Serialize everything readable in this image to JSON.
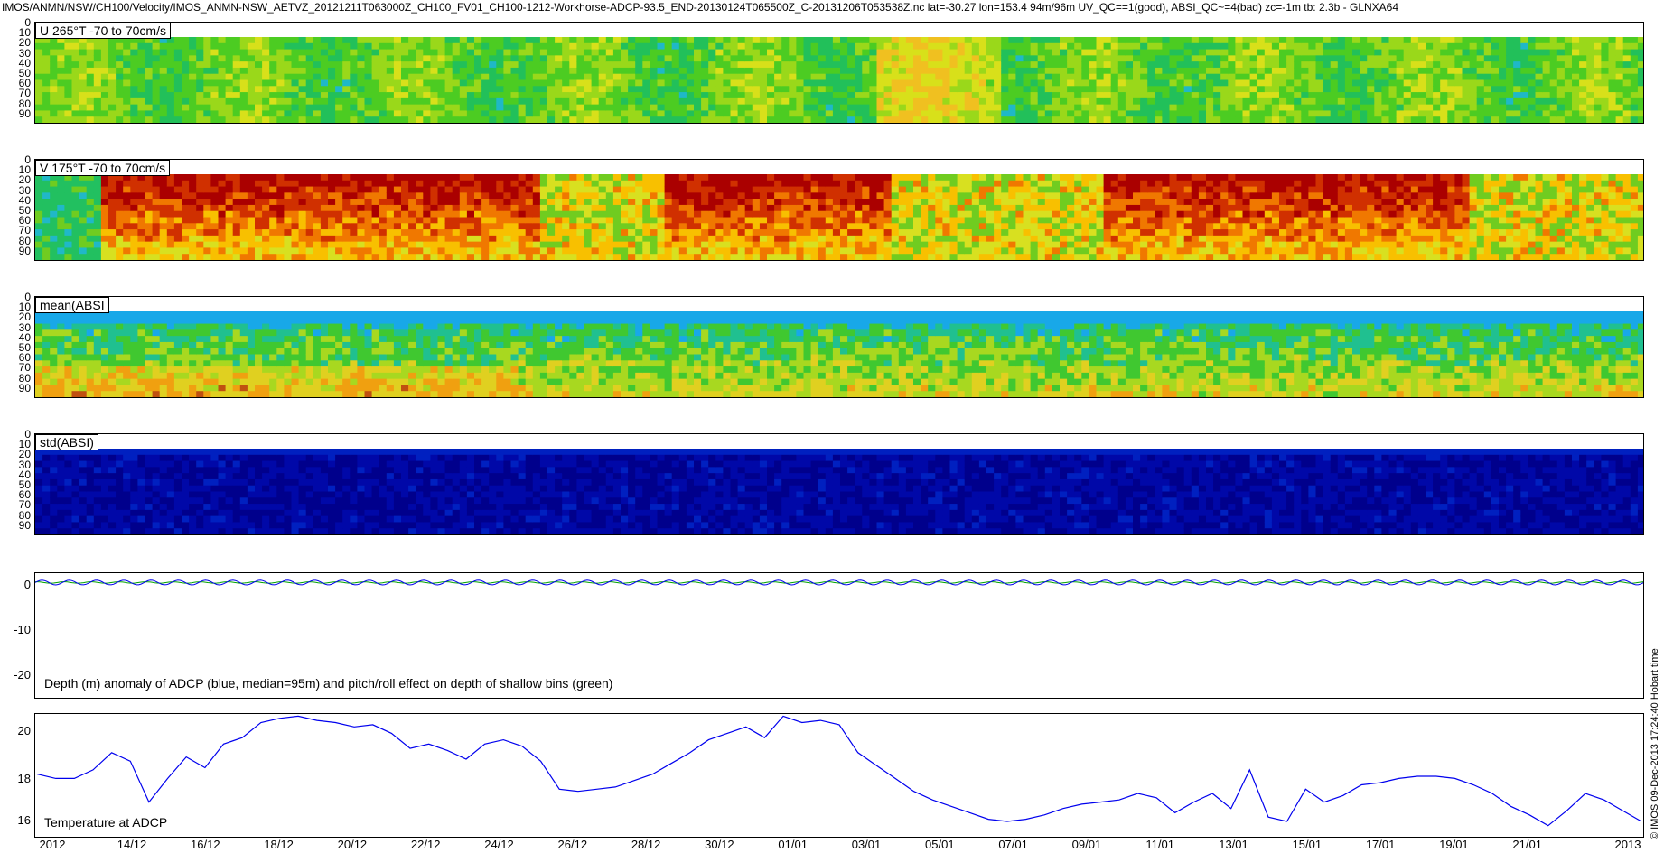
{
  "header": {
    "title": "IMOS/ANMN/NSW/CH100/Velocity/IMOS_ANMN-NSW_AETVZ_20121211T063000Z_CH100_FV01_CH100-1212-Workhorse-ADCP-93.5_END-20130124T065500Z_C-20131206T053538Z.nc lat=-30.27 lon=153.4 94m/96m UV_QC==1(good), ABSI_QC~=4(bad) zc=-1m tb: 2.3b - GLNXA64"
  },
  "side_note": "© IMOS 09-Dec-2013 17:24:40 Hobart time",
  "colors": {
    "u_palette": [
      "#1fb8c8",
      "#22c05a",
      "#4ccc22",
      "#9ad81a",
      "#d8e01a",
      "#f0c020"
    ],
    "v_palette": [
      "#aa0000",
      "#d03000",
      "#f07800",
      "#f8c000",
      "#d8e020",
      "#70cc20",
      "#22c060",
      "#20b8c8"
    ],
    "mean_palette": [
      "#0a7ad8",
      "#18a8e8",
      "#20c090",
      "#40c830",
      "#a8d820",
      "#e0d020",
      "#f0a010",
      "#c05010"
    ],
    "std_palette": [
      "#00008c",
      "#0008a8",
      "#0020c0",
      "#0048d8"
    ],
    "series_blue": "#0000ee",
    "series_green": "#00a000"
  },
  "panels": [
    {
      "id": "u",
      "label": "U 265°T -70 to 70cm/s",
      "yticks": [
        "0",
        "10",
        "20",
        "30",
        "40",
        "50",
        "60",
        "70",
        "80",
        "90"
      ]
    },
    {
      "id": "v",
      "label": "V 175°T -70 to 70cm/s",
      "yticks": [
        "0",
        "10",
        "20",
        "30",
        "40",
        "50",
        "60",
        "70",
        "80",
        "90"
      ]
    },
    {
      "id": "mean",
      "label": "mean(ABSI",
      "yticks": [
        "0",
        "10",
        "20",
        "30",
        "40",
        "50",
        "60",
        "70",
        "80",
        "90"
      ]
    },
    {
      "id": "std",
      "label": "std(ABSI)",
      "yticks": [
        "0",
        "10",
        "20",
        "30",
        "40",
        "50",
        "60",
        "70",
        "80",
        "90"
      ]
    }
  ],
  "chart_data": [
    {
      "type": "heatmap",
      "title": "U 265°T -70 to 70cm/s",
      "ylabel": "",
      "ylim": [
        90,
        0
      ],
      "value_range": [
        -70,
        70
      ],
      "yticks": [
        0,
        10,
        20,
        30,
        40,
        50,
        60,
        70,
        80,
        90
      ],
      "x_range": [
        "2012-12-11",
        "2013-01-24"
      ]
    },
    {
      "type": "heatmap",
      "title": "V 175°T -70 to 70cm/s",
      "ylim": [
        90,
        0
      ],
      "value_range": [
        -70,
        70
      ],
      "yticks": [
        0,
        10,
        20,
        30,
        40,
        50,
        60,
        70,
        80,
        90
      ],
      "x_range": [
        "2012-12-11",
        "2013-01-24"
      ]
    },
    {
      "type": "heatmap",
      "title": "mean(ABSI",
      "ylim": [
        90,
        0
      ],
      "yticks": [
        0,
        10,
        20,
        30,
        40,
        50,
        60,
        70,
        80,
        90
      ],
      "x_range": [
        "2012-12-11",
        "2013-01-24"
      ]
    },
    {
      "type": "heatmap",
      "title": "std(ABSI)",
      "ylim": [
        90,
        0
      ],
      "yticks": [
        0,
        10,
        20,
        30,
        40,
        50,
        60,
        70,
        80,
        90
      ],
      "x_range": [
        "2012-12-11",
        "2013-01-24"
      ]
    },
    {
      "type": "line",
      "annotation": "Depth (m) anomaly of ADCP (blue, median=95m) and pitch/roll effect on depth of shallow bins (green)",
      "ylim": [
        -25,
        2
      ],
      "yticks": [
        0,
        -10,
        -20
      ],
      "series": [
        {
          "name": "blue",
          "description_value": "oscillates around 0 (±0.6 m)"
        },
        {
          "name": "green",
          "description_value": "near 0"
        }
      ]
    },
    {
      "type": "line",
      "annotation": "Temperature at ADCP",
      "ylim": [
        15.2,
        21.0
      ],
      "yticks": [
        16,
        18,
        20
      ],
      "x": [
        0,
        0.5,
        1,
        1.5,
        2,
        2.5,
        3,
        3.5,
        4,
        4.5,
        5,
        5.5,
        6,
        6.5,
        7,
        7.5,
        8,
        8.5,
        9,
        9.5,
        10,
        10.5,
        11,
        11.5,
        12,
        12.5,
        13,
        13.5,
        14,
        14.5,
        15,
        15.5,
        16,
        16.5,
        17,
        17.5,
        18,
        18.5,
        19,
        19.5,
        20,
        20.5,
        21,
        21.5,
        22,
        22.5,
        23,
        23.5,
        24,
        24.5,
        25,
        25.5,
        26,
        26.5,
        27,
        27.5,
        28,
        28.5,
        29,
        29.5,
        30,
        30.5,
        31,
        31.5,
        32,
        32.5,
        33,
        33.5,
        34,
        34.5,
        35,
        35.5,
        36,
        36.5,
        37,
        37.5,
        38,
        38.5,
        39,
        39.5,
        40,
        40.5,
        41,
        41.5,
        42,
        42.5,
        43
      ],
      "series": [
        {
          "values": [
            18.2,
            18.0,
            18.0,
            18.4,
            19.2,
            18.8,
            16.9,
            18.0,
            19.0,
            18.5,
            19.6,
            19.9,
            20.6,
            20.8,
            20.9,
            20.7,
            20.6,
            20.4,
            20.5,
            20.1,
            19.4,
            19.6,
            19.3,
            18.9,
            19.6,
            19.8,
            19.5,
            18.8,
            17.5,
            17.4,
            17.5,
            17.6,
            17.9,
            18.2,
            18.7,
            19.2,
            19.8,
            20.1,
            20.4,
            19.9,
            20.9,
            20.6,
            20.7,
            20.5,
            19.2,
            18.6,
            18.0,
            17.4,
            17.0,
            16.7,
            16.4,
            16.1,
            16.0,
            16.1,
            16.3,
            16.6,
            16.8,
            16.9,
            17.0,
            17.3,
            17.1,
            16.4,
            16.9,
            17.3,
            16.6,
            18.4,
            16.2,
            16.0,
            17.5,
            16.9,
            17.2,
            17.7,
            17.8,
            18.0,
            18.1,
            18.1,
            18.0,
            17.7,
            17.3,
            16.7,
            16.3,
            15.8,
            16.5,
            17.3,
            17.0,
            16.5,
            16.0
          ]
        }
      ]
    }
  ],
  "x_axis": {
    "ticks": [
      "2012",
      "14/12",
      "16/12",
      "18/12",
      "20/12",
      "22/12",
      "24/12",
      "26/12",
      "28/12",
      "30/12",
      "01/01",
      "03/01",
      "05/01",
      "07/01",
      "09/01",
      "11/01",
      "13/01",
      "15/01",
      "17/01",
      "19/01",
      "21/01",
      "2013"
    ]
  },
  "captions": {
    "depth": "Depth (m) anomaly of ADCP (blue, median=95m) and pitch/roll effect on depth of shallow bins (green)",
    "temp": "Temperature at ADCP"
  },
  "depth_yticks": [
    "0",
    "-10",
    "-20"
  ],
  "temp_yticks": [
    "20",
    "18",
    "16"
  ]
}
